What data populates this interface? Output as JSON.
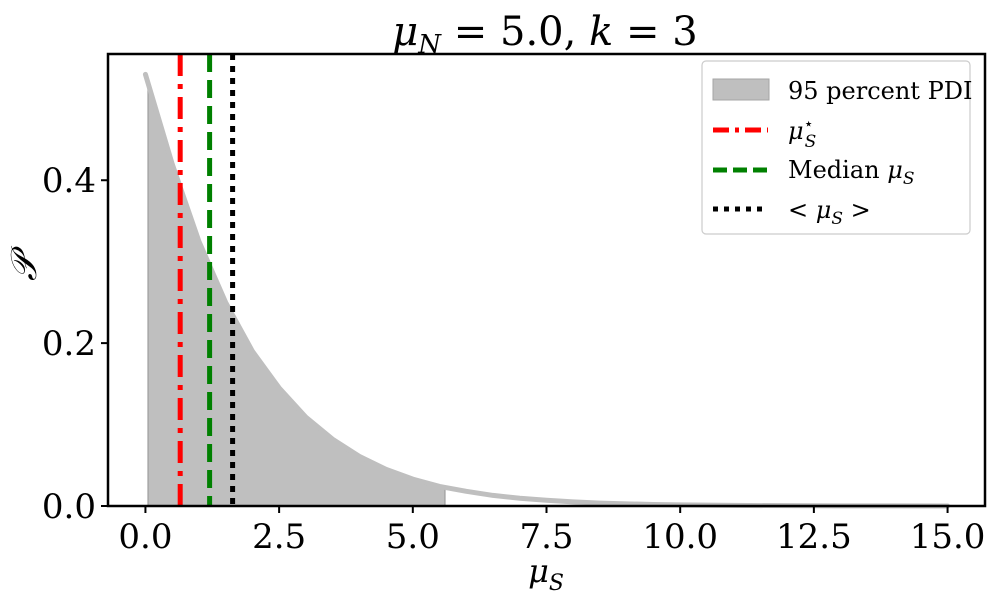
{
  "chart_data": {
    "type": "area",
    "title": "μN = 5.0, k = 3",
    "xlabel": "μS",
    "ylabel": "𝒫",
    "xlim": [
      -0.7,
      15.7
    ],
    "ylim": [
      0,
      0.555
    ],
    "xticks": [
      0.0,
      2.5,
      5.0,
      7.5,
      10.0,
      12.5,
      15.0
    ],
    "xtick_labels": [
      "0.0",
      "2.5",
      "5.0",
      "7.5",
      "10.0",
      "12.5",
      "15.0"
    ],
    "yticks": [
      0.0,
      0.2,
      0.4
    ],
    "ytick_labels": [
      "0.0",
      "0.2",
      "0.4"
    ],
    "grid": false,
    "legend_position": "upper right",
    "curve": {
      "x": [
        0.0,
        0.5,
        1.0,
        1.5,
        2.0,
        2.5,
        3.0,
        3.5,
        4.0,
        4.5,
        5.0,
        5.5,
        6.0,
        6.5,
        7.0,
        7.5,
        8.0,
        8.5,
        9.0,
        9.5,
        10.0,
        11.0,
        12.0,
        13.0,
        14.0,
        15.0
      ],
      "y": [
        0.53,
        0.42,
        0.325,
        0.25,
        0.19,
        0.145,
        0.109,
        0.082,
        0.061,
        0.045,
        0.033,
        0.024,
        0.018,
        0.013,
        0.0095,
        0.007,
        0.005,
        0.0036,
        0.0026,
        0.0019,
        0.0014,
        0.0007,
        0.0004,
        0.0002,
        0.0001,
        0.0
      ]
    },
    "pdi_interval": [
      0.05,
      5.6
    ],
    "vlines": [
      {
        "key": "mode",
        "x": 0.65,
        "color": "#ff0000",
        "style": "dashdot"
      },
      {
        "key": "median",
        "x": 1.2,
        "color": "#008000",
        "style": "dashed"
      },
      {
        "key": "mean",
        "x": 1.63,
        "color": "#000000",
        "style": "dotted"
      }
    ],
    "legend": [
      {
        "key": "pdi",
        "label": "95 percent PDI",
        "kind": "patch",
        "color": "#bfbfbf"
      },
      {
        "key": "mode",
        "label": "μS⋆",
        "kind": "line",
        "color": "#ff0000",
        "style": "dashdot"
      },
      {
        "key": "median",
        "label": "Median μS",
        "kind": "line",
        "color": "#008000",
        "style": "dashed"
      },
      {
        "key": "mean",
        "label": "< μS >",
        "kind": "line",
        "color": "#000000",
        "style": "dotted"
      }
    ]
  },
  "colors": {
    "curve": "#bfbfbf",
    "fill": "#bfbfbf",
    "fill_edge": "#a6a6a6"
  }
}
